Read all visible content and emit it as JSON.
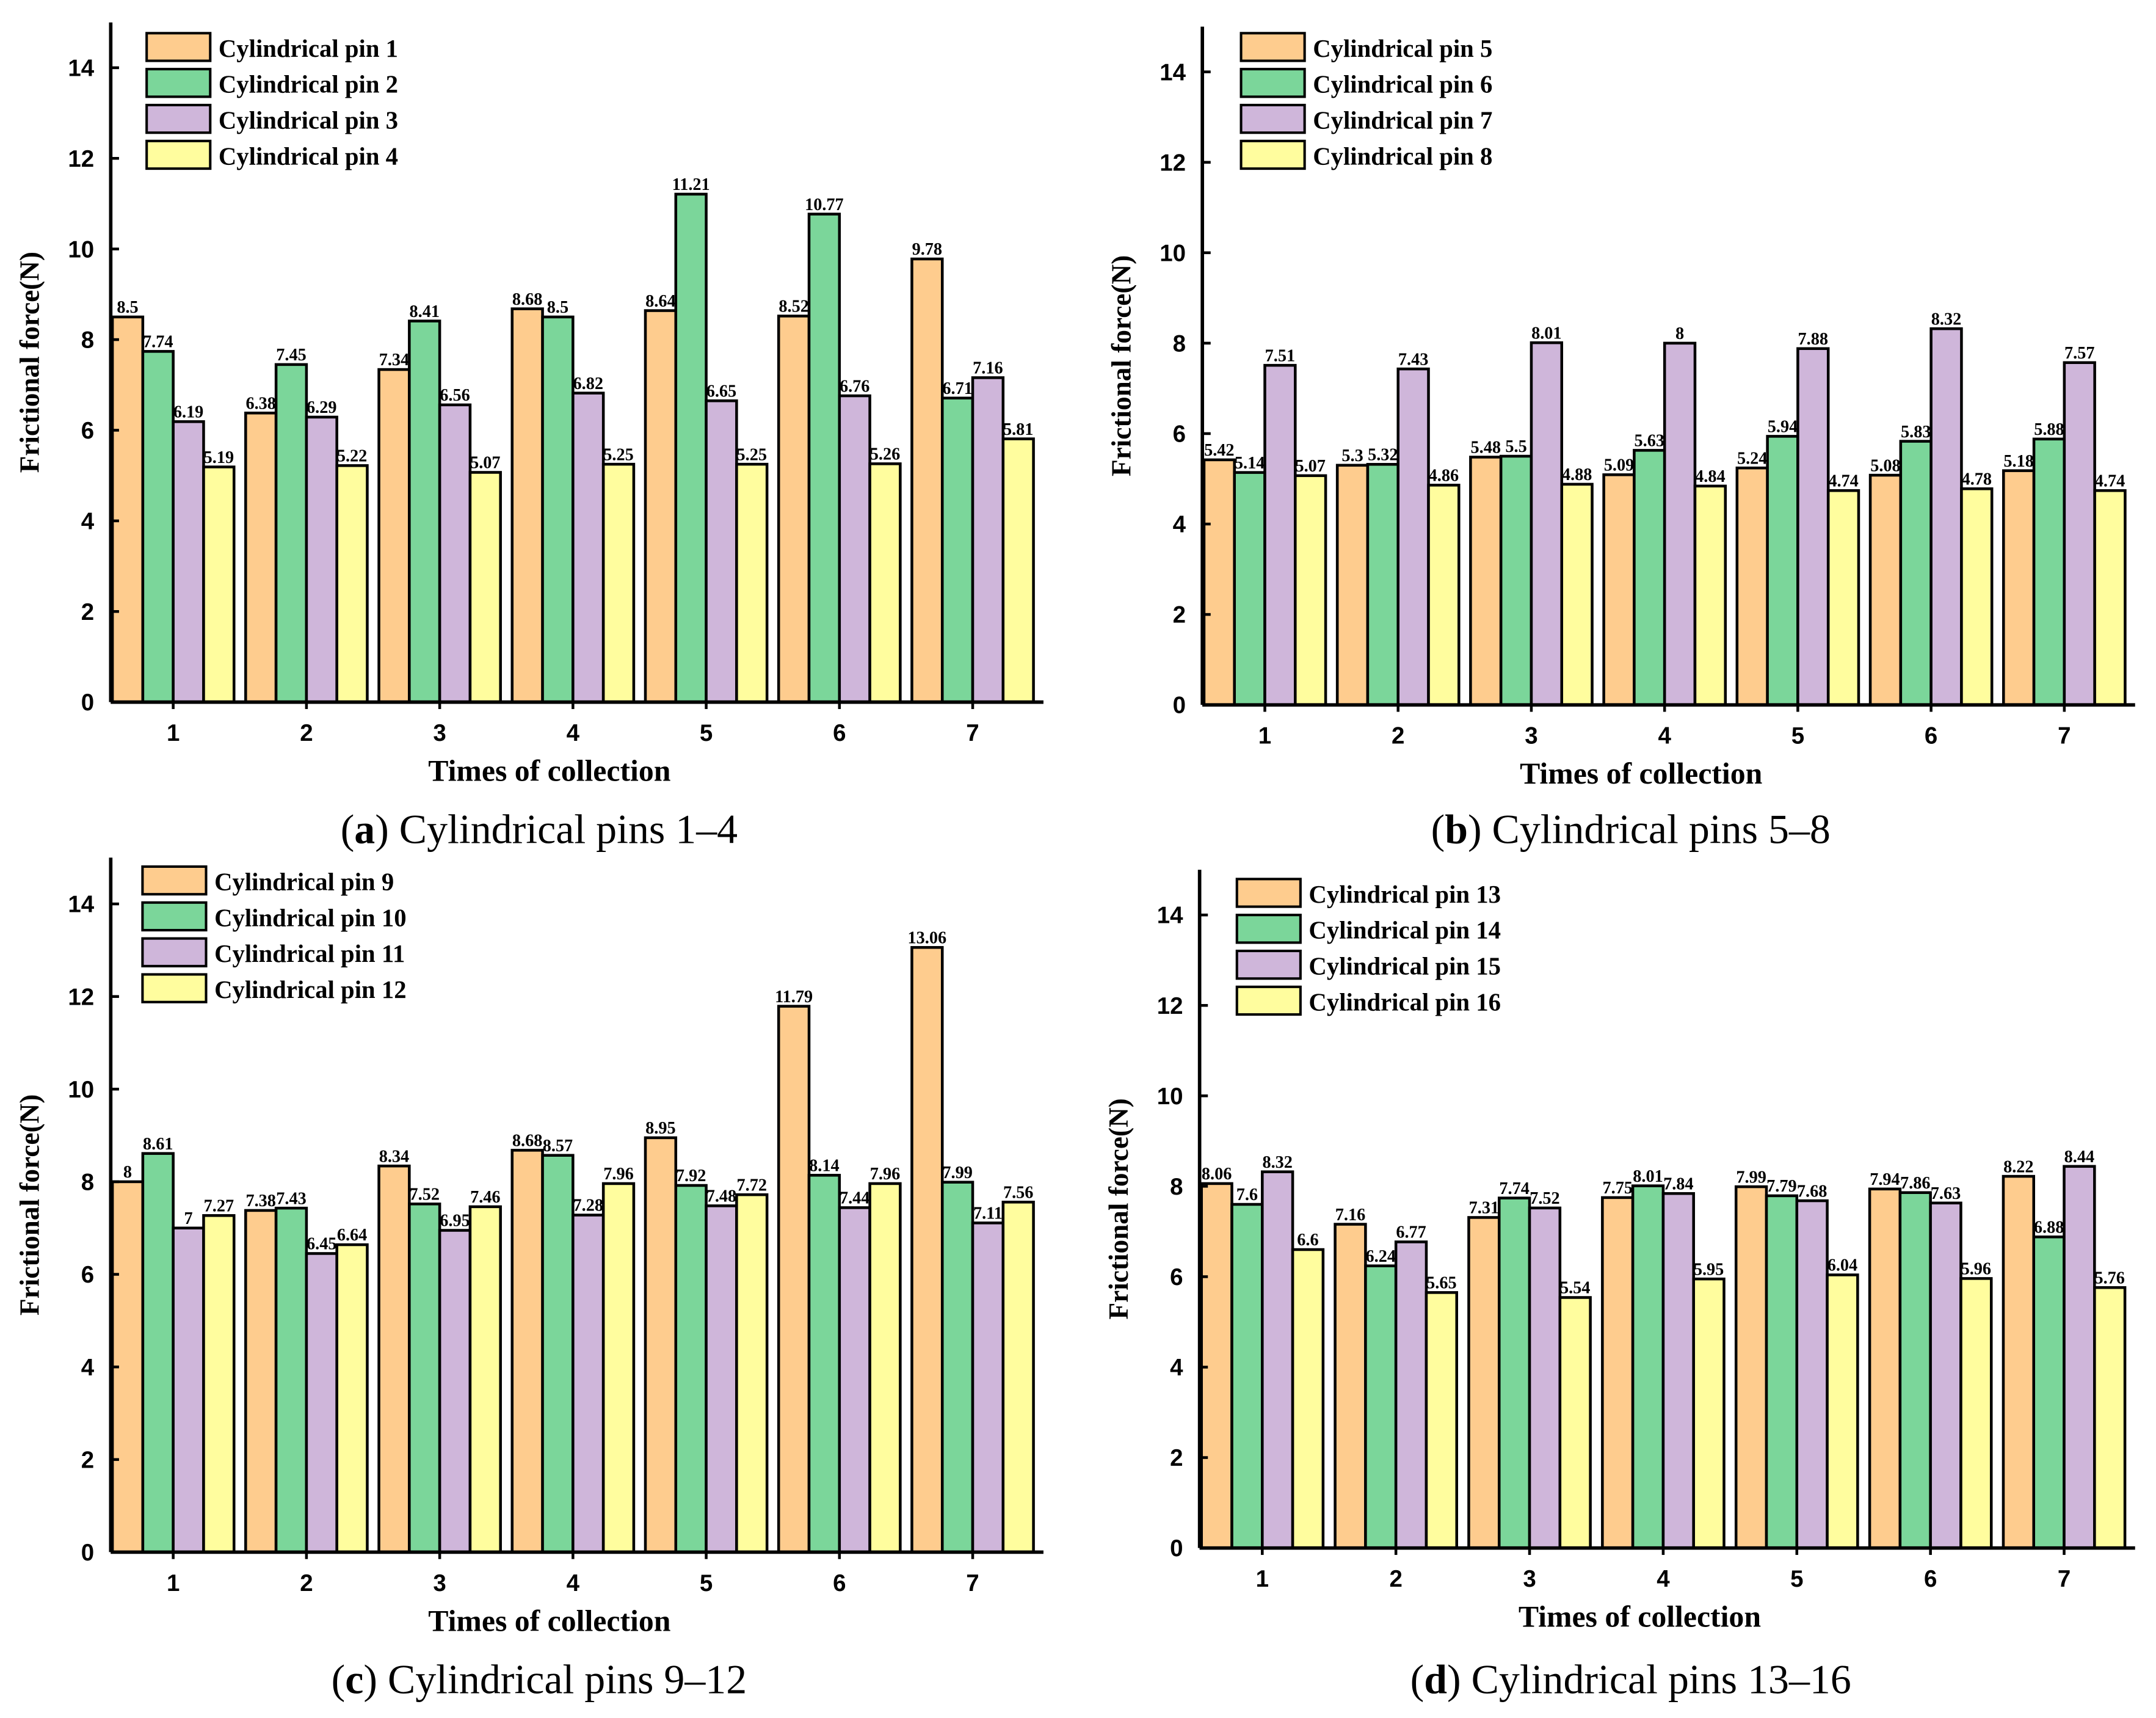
{
  "colors": {
    "series1": "#FECC8E",
    "series2": "#7BD69A",
    "series3": "#CFB6DA",
    "series4": "#FFFD9E"
  },
  "chart_data": [
    {
      "type": "bar",
      "caption_letter": "a",
      "caption_text": "Cylindrical pins 1–4",
      "xlabel": "Times of collection",
      "ylabel": "Frictional force(N)",
      "categories": [
        "1",
        "2",
        "3",
        "4",
        "5",
        "6",
        "7"
      ],
      "ylim": [
        0,
        15
      ],
      "yticks": [
        0,
        2,
        4,
        6,
        8,
        10,
        12,
        14
      ],
      "legend": "top-left",
      "series": [
        {
          "name": "Cylindrical pin 1",
          "values": [
            8.5,
            6.38,
            7.34,
            8.68,
            8.64,
            8.52,
            9.78
          ]
        },
        {
          "name": "Cylindrical pin 2",
          "values": [
            7.74,
            7.45,
            8.41,
            8.5,
            11.21,
            10.77,
            6.71
          ]
        },
        {
          "name": "Cylindrical pin 3",
          "values": [
            6.19,
            6.29,
            6.56,
            6.82,
            6.65,
            6.76,
            7.16
          ]
        },
        {
          "name": "Cylindrical pin 4",
          "values": [
            5.19,
            5.22,
            5.07,
            5.25,
            5.25,
            5.26,
            5.81
          ]
        }
      ]
    },
    {
      "type": "bar",
      "caption_letter": "b",
      "caption_text": "Cylindrical pins 5–8",
      "xlabel": "Times of collection",
      "ylabel": "Frictional force(N)",
      "categories": [
        "1",
        "2",
        "3",
        "4",
        "5",
        "6",
        "7"
      ],
      "ylim": [
        0,
        15
      ],
      "yticks": [
        0,
        2,
        4,
        6,
        8,
        10,
        12,
        14
      ],
      "legend": "top-left",
      "series": [
        {
          "name": "Cylindrical pin 5",
          "values": [
            5.42,
            5.3,
            5.48,
            5.09,
            5.24,
            5.08,
            5.18
          ]
        },
        {
          "name": "Cylindrical pin 6",
          "values": [
            5.14,
            5.32,
            5.5,
            5.63,
            5.94,
            5.83,
            5.88
          ]
        },
        {
          "name": "Cylindrical pin 7",
          "values": [
            7.51,
            7.43,
            8.01,
            8,
            7.88,
            8.32,
            7.57
          ]
        },
        {
          "name": "Cylindrical pin 8",
          "values": [
            5.07,
            4.86,
            4.88,
            4.84,
            4.74,
            4.78,
            4.74
          ]
        }
      ]
    },
    {
      "type": "bar",
      "caption_letter": "c",
      "caption_text": "Cylindrical pins 9–12",
      "xlabel": "Times of collection",
      "ylabel": "Frictional force(N)",
      "categories": [
        "1",
        "2",
        "3",
        "4",
        "5",
        "6",
        "7"
      ],
      "ylim": [
        0,
        15
      ],
      "yticks": [
        0,
        2,
        4,
        6,
        8,
        10,
        12,
        14
      ],
      "legend": "top-left",
      "series": [
        {
          "name": "Cylindrical pin 9",
          "values": [
            8,
            7.38,
            8.34,
            8.68,
            8.95,
            11.79,
            13.06
          ]
        },
        {
          "name": "Cylindrical pin 10",
          "values": [
            8.61,
            7.43,
            7.52,
            8.57,
            7.92,
            8.14,
            7.99
          ]
        },
        {
          "name": "Cylindrical pin 11",
          "values": [
            7,
            6.45,
            6.95,
            7.28,
            7.48,
            7.44,
            7.11
          ]
        },
        {
          "name": "Cylindrical pin 12",
          "values": [
            7.27,
            6.64,
            7.46,
            7.96,
            7.72,
            7.96,
            7.56
          ]
        }
      ]
    },
    {
      "type": "bar",
      "caption_letter": "d",
      "caption_text": "Cylindrical pins 13–16",
      "xlabel": "Times of collection",
      "ylabel": "Frictional force(N)",
      "categories": [
        "1",
        "2",
        "3",
        "4",
        "5",
        "6",
        "7"
      ],
      "ylim": [
        0,
        15
      ],
      "yticks": [
        0,
        2,
        4,
        6,
        8,
        10,
        12,
        14
      ],
      "legend": "top-left",
      "series": [
        {
          "name": "Cylindrical pin 13",
          "values": [
            8.06,
            7.16,
            7.31,
            7.75,
            7.99,
            7.94,
            8.22
          ]
        },
        {
          "name": "Cylindrical pin 14",
          "values": [
            7.6,
            6.24,
            7.74,
            8.01,
            7.79,
            7.86,
            6.88
          ]
        },
        {
          "name": "Cylindrical pin 15",
          "values": [
            8.32,
            6.77,
            7.52,
            7.84,
            7.68,
            7.63,
            8.44
          ]
        },
        {
          "name": "Cylindrical pin 16",
          "values": [
            6.6,
            5.65,
            5.54,
            5.95,
            6.04,
            5.96,
            5.76
          ]
        }
      ]
    }
  ]
}
